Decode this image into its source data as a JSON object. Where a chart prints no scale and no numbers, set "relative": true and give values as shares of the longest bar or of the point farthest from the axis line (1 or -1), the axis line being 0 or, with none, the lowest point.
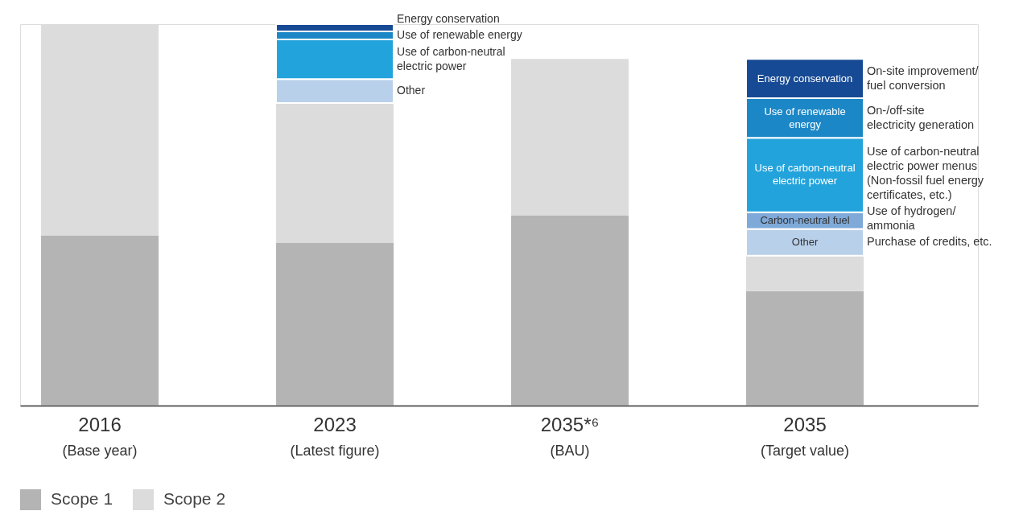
{
  "chart_data": {
    "type": "bar",
    "relative": true,
    "stacked": true,
    "legend": "bottom left",
    "categories": [
      "2016\n(Base year)",
      "2023\n(Latest figure)",
      "2035*⁶\n(BAU)",
      "2035\n(Target value)"
    ],
    "series": [
      {
        "name": "Scope 1",
        "color": "#b4b4b4",
        "values": [
          0.446,
          0.427,
          0.499,
          0.3
        ]
      },
      {
        "name": "Scope 2",
        "color": "#dcdcdc",
        "values": [
          0.554,
          0.366,
          0.41,
          0.093
        ]
      },
      {
        "name": "Other",
        "color": "#b9d0ea",
        "values": [
          null,
          0.063,
          null,
          0.07
        ]
      },
      {
        "name": "Carbon-neutral fuel",
        "color": "#7ea9d8",
        "values": [
          null,
          null,
          null,
          0.044
        ]
      },
      {
        "name": "Use of carbon-neutral electric power",
        "color": "#22a3dc",
        "values": [
          null,
          0.104,
          null,
          0.195
        ]
      },
      {
        "name": "Use of renewable energy",
        "color": "#1c87c6",
        "values": [
          null,
          0.021,
          null,
          0.104
        ]
      },
      {
        "name": "Energy conservation",
        "color": "#174a94",
        "values": [
          null,
          0.019,
          null,
          0.103
        ]
      }
    ],
    "annotations": [
      "On-site improvement/\nfuel conversion",
      "On-/off-site\nelectricity generation",
      "Use of carbon-neutral\nelectric power menus\n(Non-fossil fuel energy\ncertificates, etc.)",
      "Use of hydrogen/\nammonia",
      "Purchase of credits, etc."
    ]
  }
}
